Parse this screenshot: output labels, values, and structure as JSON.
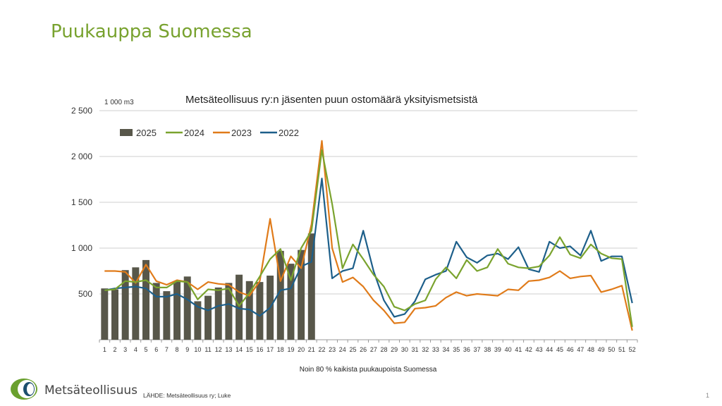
{
  "slide": {
    "title": "Puukauppa Suomessa",
    "footnote": "Noin 80 % kaikista puukaupoista Suomessa",
    "source": "LÄHDE: Metsäteollisuus ry; Luke",
    "logo_text": "Metsäteollisuus",
    "page_number": "1"
  },
  "chart_data": {
    "type": "bar+line",
    "title": "Metsäteollisuus ry:n jäsenten puun ostomäärä yksityismetsistä",
    "unit": "1 000 m3",
    "xlabel": "",
    "ylabel": "",
    "ylim": [
      0,
      2500
    ],
    "yticks": [
      0,
      500,
      1000,
      1500,
      2000,
      2500
    ],
    "ytick_labels": [
      "",
      "500",
      "1 000",
      "1 500",
      "2 000",
      "2 500"
    ],
    "grid": "horizontal",
    "legend_position": "top-left",
    "x": [
      1,
      2,
      3,
      4,
      5,
      6,
      7,
      8,
      9,
      10,
      11,
      12,
      13,
      14,
      15,
      16,
      17,
      18,
      19,
      20,
      21,
      22,
      23,
      24,
      25,
      26,
      27,
      28,
      29,
      30,
      31,
      32,
      33,
      34,
      35,
      36,
      37,
      38,
      39,
      40,
      41,
      42,
      43,
      44,
      45,
      46,
      47,
      48,
      49,
      50,
      51,
      52
    ],
    "bars": {
      "name": "2025",
      "color": "#58574a",
      "values": [
        560,
        550,
        760,
        790,
        870,
        620,
        530,
        640,
        690,
        420,
        480,
        570,
        620,
        710,
        640,
        630,
        700,
        970,
        830,
        980,
        1160
      ]
    },
    "series": [
      {
        "name": "2024",
        "color": "#7aa32e",
        "values": [
          540,
          550,
          640,
          630,
          650,
          570,
          570,
          640,
          630,
          440,
          550,
          540,
          560,
          370,
          510,
          690,
          880,
          990,
          650,
          1000,
          1190,
          2070,
          1480,
          780,
          1040,
          880,
          710,
          580,
          360,
          320,
          390,
          430,
          660,
          790,
          670,
          870,
          750,
          790,
          990,
          830,
          790,
          780,
          800,
          920,
          1120,
          930,
          890,
          1040,
          940,
          890,
          880,
          140
        ]
      },
      {
        "name": "2023",
        "color": "#e07b1a",
        "values": [
          750,
          750,
          740,
          620,
          820,
          640,
          600,
          650,
          630,
          550,
          630,
          610,
          600,
          520,
          480,
          640,
          1320,
          640,
          910,
          780,
          1260,
          2170,
          1000,
          630,
          680,
          580,
          430,
          320,
          180,
          190,
          340,
          350,
          370,
          460,
          520,
          480,
          500,
          490,
          480,
          550,
          540,
          640,
          650,
          680,
          750,
          670,
          690,
          700,
          520,
          550,
          590,
          100
        ]
      },
      {
        "name": "2022",
        "color": "#1d5f8a",
        "values": [
          540,
          560,
          570,
          580,
          560,
          470,
          470,
          500,
          440,
          360,
          320,
          370,
          390,
          340,
          330,
          260,
          350,
          540,
          560,
          800,
          850,
          1760,
          670,
          750,
          780,
          1190,
          750,
          430,
          250,
          280,
          420,
          660,
          710,
          750,
          1070,
          900,
          840,
          920,
          940,
          880,
          1010,
          770,
          740,
          1070,
          1000,
          1020,
          920,
          1190,
          860,
          910,
          910,
          400
        ]
      }
    ]
  }
}
